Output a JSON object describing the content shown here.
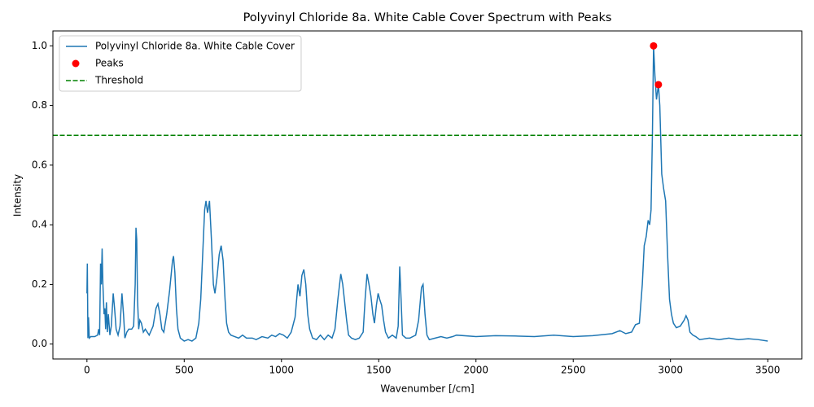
{
  "chart_data": {
    "type": "line",
    "title": "Polyvinyl Chloride 8a. White Cable Cover Spectrum with Peaks",
    "xlabel": "Wavenumber [/cm]",
    "ylabel": "Intensity",
    "xlim": [
      -175,
      3675
    ],
    "ylim": [
      -0.05,
      1.05
    ],
    "xticks": [
      0,
      500,
      1000,
      1500,
      2000,
      2500,
      3000,
      3500
    ],
    "yticks": [
      {
        "value": 0,
        "label": "0.0"
      },
      0.2,
      0.4,
      0.6,
      0.8,
      {
        "value": 1,
        "label": "1.0"
      }
    ],
    "legend": "upper left",
    "series": [
      {
        "name": "Polyvinyl Chloride 8a. White Cable Cover",
        "color": "#1f77b4",
        "type": "line",
        "x": [
          0,
          2,
          5,
          8,
          12,
          20,
          40,
          55,
          60,
          65,
          70,
          74,
          78,
          82,
          88,
          92,
          96,
          100,
          105,
          110,
          118,
          125,
          135,
          142,
          150,
          160,
          170,
          180,
          188,
          195,
          205,
          215,
          230,
          240,
          248,
          252,
          256,
          260,
          266,
          272,
          280,
          290,
          300,
          310,
          320,
          340,
          355,
          365,
          375,
          385,
          395,
          410,
          425,
          440,
          445,
          452,
          460,
          468,
          480,
          500,
          520,
          540,
          560,
          575,
          585,
          595,
          605,
          612,
          620,
          630,
          640,
          650,
          658,
          668,
          680,
          690,
          700,
          710,
          718,
          728,
          740,
          760,
          780,
          800,
          820,
          850,
          870,
          900,
          930,
          950,
          970,
          990,
          1010,
          1030,
          1050,
          1070,
          1085,
          1095,
          1105,
          1115,
          1125,
          1135,
          1145,
          1160,
          1180,
          1200,
          1220,
          1240,
          1260,
          1275,
          1290,
          1305,
          1315,
          1325,
          1335,
          1345,
          1360,
          1380,
          1400,
          1420,
          1430,
          1440,
          1450,
          1460,
          1470,
          1478,
          1488,
          1497,
          1505,
          1515,
          1525,
          1535,
          1550,
          1570,
          1590,
          1600,
          1608,
          1615,
          1622,
          1640,
          1660,
          1690,
          1705,
          1720,
          1728,
          1738,
          1748,
          1760,
          1790,
          1820,
          1850,
          1880,
          1900,
          2000,
          2100,
          2200,
          2300,
          2400,
          2500,
          2600,
          2700,
          2740,
          2770,
          2800,
          2820,
          2840,
          2855,
          2865,
          2875,
          2885,
          2893,
          2900,
          2907,
          2913,
          2920,
          2928,
          2938,
          2945,
          2955,
          2965,
          2975,
          2985,
          2995,
          3005,
          3015,
          3030,
          3050,
          3070,
          3080,
          3090,
          3100,
          3115,
          3130,
          3150,
          3200,
          3250,
          3300,
          3350,
          3400,
          3450,
          3500
        ],
        "values": [
          0.17,
          0.27,
          0.02,
          0.09,
          0.02,
          0.025,
          0.025,
          0.03,
          0.05,
          0.03,
          0.27,
          0.2,
          0.32,
          0.2,
          0.1,
          0.12,
          0.05,
          0.14,
          0.04,
          0.1,
          0.03,
          0.06,
          0.17,
          0.12,
          0.05,
          0.03,
          0.06,
          0.17,
          0.1,
          0.02,
          0.04,
          0.05,
          0.05,
          0.06,
          0.2,
          0.39,
          0.35,
          0.15,
          0.05,
          0.08,
          0.07,
          0.04,
          0.05,
          0.04,
          0.03,
          0.06,
          0.12,
          0.135,
          0.1,
          0.05,
          0.04,
          0.1,
          0.18,
          0.28,
          0.295,
          0.24,
          0.12,
          0.05,
          0.02,
          0.01,
          0.015,
          0.01,
          0.02,
          0.07,
          0.15,
          0.3,
          0.45,
          0.48,
          0.44,
          0.48,
          0.35,
          0.2,
          0.17,
          0.22,
          0.3,
          0.33,
          0.28,
          0.15,
          0.07,
          0.04,
          0.03,
          0.025,
          0.02,
          0.03,
          0.02,
          0.02,
          0.015,
          0.025,
          0.02,
          0.03,
          0.025,
          0.035,
          0.03,
          0.02,
          0.04,
          0.09,
          0.2,
          0.16,
          0.23,
          0.25,
          0.2,
          0.1,
          0.05,
          0.02,
          0.015,
          0.03,
          0.015,
          0.03,
          0.02,
          0.05,
          0.15,
          0.235,
          0.2,
          0.14,
          0.08,
          0.03,
          0.02,
          0.015,
          0.02,
          0.04,
          0.15,
          0.235,
          0.2,
          0.16,
          0.1,
          0.07,
          0.13,
          0.17,
          0.15,
          0.13,
          0.08,
          0.04,
          0.02,
          0.03,
          0.02,
          0.06,
          0.26,
          0.15,
          0.03,
          0.02,
          0.02,
          0.03,
          0.08,
          0.19,
          0.2,
          0.1,
          0.03,
          0.015,
          0.02,
          0.025,
          0.02,
          0.025,
          0.03,
          0.025,
          0.028,
          0.027,
          0.025,
          0.03,
          0.025,
          0.028,
          0.035,
          0.045,
          0.035,
          0.04,
          0.065,
          0.07,
          0.2,
          0.33,
          0.36,
          0.415,
          0.4,
          0.45,
          0.7,
          1.0,
          0.9,
          0.82,
          0.87,
          0.8,
          0.57,
          0.52,
          0.48,
          0.3,
          0.15,
          0.1,
          0.07,
          0.055,
          0.06,
          0.08,
          0.095,
          0.08,
          0.04,
          0.03,
          0.025,
          0.015,
          0.02,
          0.015,
          0.02,
          0.015,
          0.018,
          0.015,
          0.01
        ]
      },
      {
        "name": "Peaks",
        "color": "#ff0000",
        "type": "scatter",
        "x": [
          2913,
          2938
        ],
        "values": [
          1.0,
          0.87
        ]
      }
    ],
    "threshold": {
      "name": "Threshold",
      "value": 0.7,
      "color": "#008000"
    }
  }
}
